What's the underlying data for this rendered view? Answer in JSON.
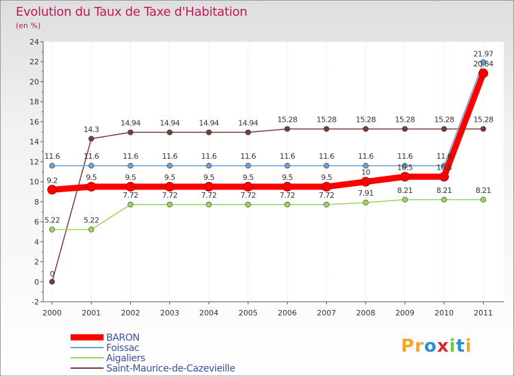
{
  "chart_data": {
    "type": "line",
    "title": "Evolution du Taux de Taxe d'Habitation",
    "subtitle": "(en %)",
    "categories": [
      "2000",
      "2001",
      "2002",
      "2003",
      "2004",
      "2005",
      "2006",
      "2007",
      "2008",
      "2009",
      "2010",
      "2011"
    ],
    "ylim": [
      -2,
      24
    ],
    "yticks": [
      -2,
      0,
      2,
      4,
      6,
      8,
      10,
      12,
      14,
      16,
      18,
      20,
      22,
      24
    ],
    "grid": "vertical",
    "legend_position": "bottom-left",
    "series": [
      {
        "name": "BARON",
        "color": "#ff0000",
        "values": [
          9.2,
          9.5,
          9.5,
          9.5,
          9.5,
          9.5,
          9.5,
          9.5,
          10,
          10.5,
          10.5,
          20.84
        ],
        "labels": [
          "9.2",
          "9.5",
          "9.5",
          "9.5",
          "9.5",
          "9.5",
          "9.5",
          "9.5",
          "10",
          "10.5",
          "10.5",
          "20.84"
        ]
      },
      {
        "name": "Foissac",
        "color": "#6f9fcf",
        "values": [
          11.6,
          11.6,
          11.6,
          11.6,
          11.6,
          11.6,
          11.6,
          11.6,
          11.6,
          11.6,
          11.6,
          21.97
        ],
        "labels": [
          "11.6",
          "11.6",
          "11.6",
          "11.6",
          "11.6",
          "11.6",
          "11.6",
          "11.6",
          "11.6",
          "11.6",
          "11.6",
          "21.97"
        ]
      },
      {
        "name": "Aigaliers",
        "color": "#99d65c",
        "values": [
          5.22,
          5.22,
          7.72,
          7.72,
          7.72,
          7.72,
          7.72,
          7.72,
          7.91,
          8.21,
          8.21,
          8.21
        ],
        "labels": [
          "5.22",
          "5.22",
          "7.72",
          "7.72",
          "7.72",
          "7.72",
          "7.72",
          "7.72",
          "7.91",
          "8.21",
          "8.21",
          "8.21"
        ]
      },
      {
        "name": "Saint-Maurice-de-Cazevieille",
        "color": "#7a3a3a",
        "values": [
          0,
          14.3,
          14.94,
          14.94,
          14.94,
          14.94,
          15.28,
          15.28,
          15.28,
          15.28,
          15.28,
          15.28
        ],
        "labels": [
          "0",
          "14.3",
          "14.94",
          "14.94",
          "14.94",
          "14.94",
          "15.28",
          "15.28",
          "15.28",
          "15.28",
          "15.28",
          "15.28"
        ]
      }
    ]
  },
  "logo": {
    "text": "Proxiti"
  }
}
